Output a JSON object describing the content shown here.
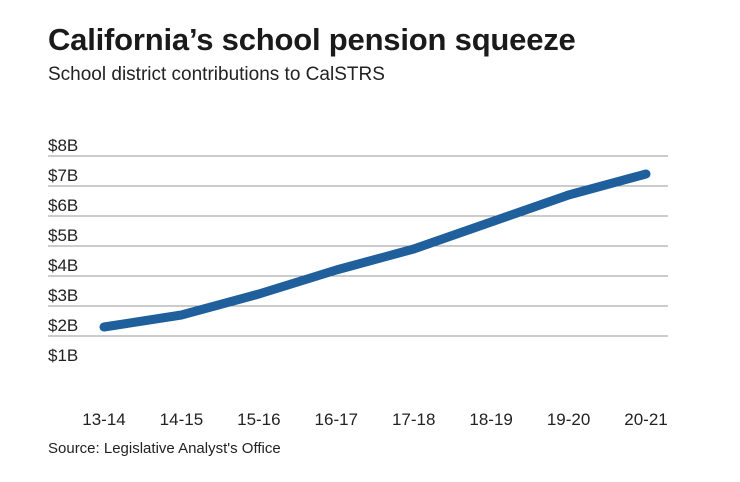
{
  "title": "California’s school pension squeeze",
  "subtitle": "School district contributions to CalSTRS",
  "source": "Source: Legislative Analyst's Office",
  "colors": {
    "line": "#1f5f9c",
    "grid": "#9a9a9a",
    "text": "#222222"
  },
  "chart_data": {
    "type": "line",
    "title": "California’s school pension squeeze",
    "subtitle": "School district contributions to CalSTRS",
    "xlabel": "",
    "ylabel": "",
    "categories": [
      "13-14",
      "14-15",
      "15-16",
      "16-17",
      "17-18",
      "18-19",
      "19-20",
      "20-21"
    ],
    "y_tick_labels": [
      "$1B",
      "$2B",
      "$3B",
      "$4B",
      "$5B",
      "$6B",
      "$7B",
      "$8B"
    ],
    "y_tick_values": [
      1,
      2,
      3,
      4,
      5,
      6,
      7,
      8
    ],
    "ylim": [
      1,
      8
    ],
    "unit": "billions of dollars",
    "grid": "horizontal",
    "legend": "none",
    "series": [
      {
        "values": [
          2.3,
          2.7,
          3.4,
          4.2,
          4.9,
          5.8,
          6.7,
          7.4
        ]
      }
    ]
  }
}
